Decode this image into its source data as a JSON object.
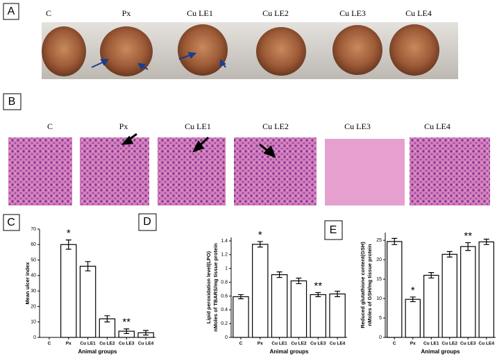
{
  "panels": {
    "A": {
      "label": "A",
      "groups": [
        "C",
        "Px",
        "Cu LE1",
        "Cu LE2",
        "Cu LE3",
        "Cu LE4"
      ]
    },
    "B": {
      "label": "B",
      "groups": [
        "C",
        "Px",
        "Cu LE1",
        "Cu LE2",
        "Cu LE3",
        "Cu LE4"
      ]
    },
    "C": {
      "label": "C"
    },
    "D": {
      "label": "D"
    },
    "E": {
      "label": "E"
    }
  },
  "chart_data": [
    {
      "type": "bar",
      "y_label": "Mean ulcer index",
      "x_label": "Animal groups",
      "categories": [
        "C",
        "Px",
        "Cu LE1",
        "Cu LE2",
        "Cu LE3",
        "Cu LE4"
      ],
      "values": [
        0,
        60,
        46,
        12,
        4,
        3
      ],
      "errors": [
        0,
        3,
        3,
        2,
        1.5,
        1.5
      ],
      "annotations": [
        null,
        "*",
        null,
        null,
        "**",
        null
      ],
      "color": "#ffffff",
      "ylim": [
        0,
        70
      ],
      "yticks": [
        0,
        10,
        20,
        30,
        40,
        50,
        60,
        70
      ]
    },
    {
      "type": "bar",
      "y_label": [
        "Lipid peroxidation level(LPO)",
        "nMoles of TBARS/mg tissue protein"
      ],
      "x_label": "Animal groups",
      "categories": [
        "C",
        "Px",
        "Cu LE1",
        "Cu LE2",
        "Cu LE3",
        "Cu LE4"
      ],
      "values": [
        0.59,
        1.35,
        0.91,
        0.82,
        0.62,
        0.63
      ],
      "errors": [
        0.03,
        0.04,
        0.04,
        0.04,
        0.03,
        0.04
      ],
      "annotations": [
        null,
        "*",
        null,
        null,
        "**",
        null
      ],
      "color": "#ffffff",
      "ylim": [
        0,
        1.45
      ],
      "yticks": [
        0,
        0.2,
        0.4,
        0.6,
        0.8,
        1,
        1.2,
        1.4
      ]
    },
    {
      "type": "bar",
      "y_label": [
        "Reduced glutathione content(GSH)",
        "nMoles of GSH/mg tissue protein"
      ],
      "x_label": "Animal groups",
      "categories": [
        "C",
        "Px",
        "Cu LE1",
        "Cu LE2",
        "Cu LE3",
        "Cu LE4"
      ],
      "values": [
        24.7,
        9.8,
        16,
        21.4,
        23.4,
        24.6
      ],
      "errors": [
        0.8,
        0.6,
        0.7,
        0.7,
        1,
        0.7
      ],
      "annotations": [
        null,
        "*",
        null,
        null,
        "**",
        null
      ],
      "color": "#ffffff",
      "ylim": [
        0,
        27
      ],
      "yticks": [
        0,
        5,
        10,
        15,
        20,
        25
      ]
    }
  ]
}
